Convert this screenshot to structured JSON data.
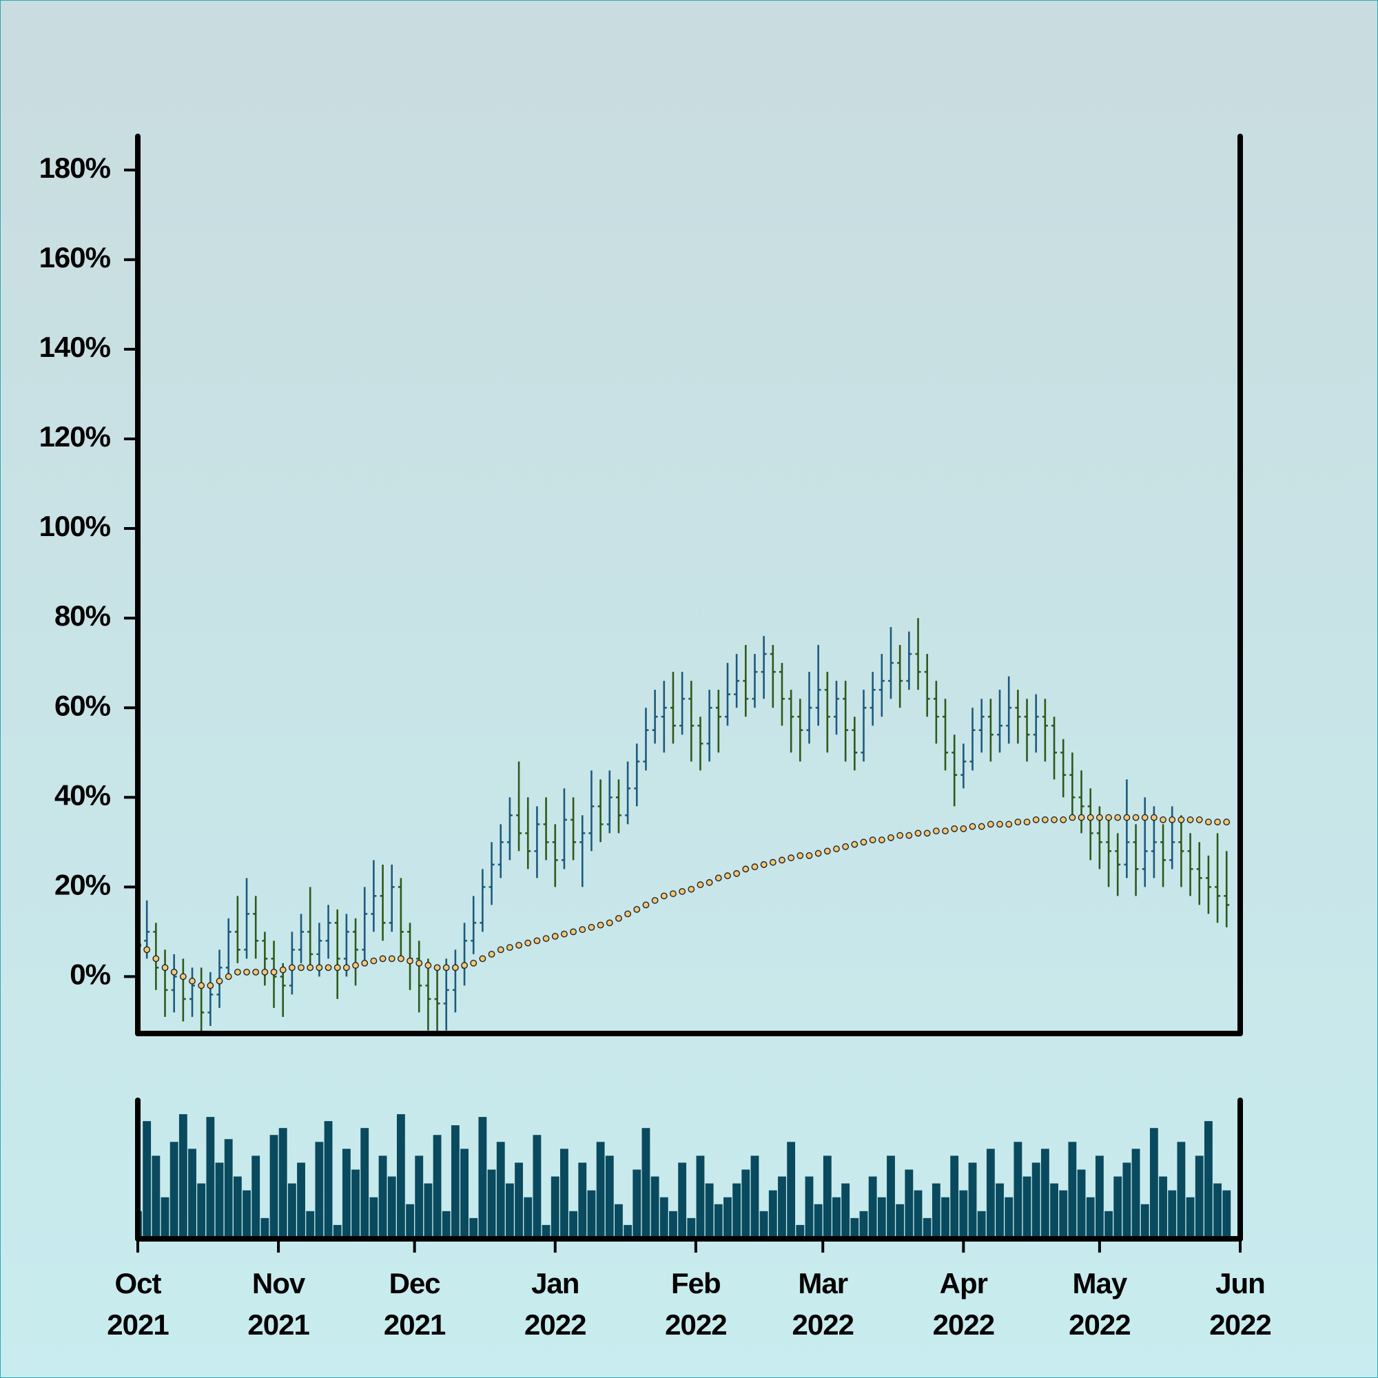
{
  "chart_data": {
    "type": "ohlc",
    "x": [
      0,
      2,
      4,
      6,
      8,
      10,
      12,
      14,
      16,
      18,
      20,
      22,
      24,
      26,
      28,
      30,
      32,
      34,
      36,
      38,
      40,
      42,
      44,
      46,
      48,
      50,
      52,
      54,
      56,
      58,
      60,
      62,
      64,
      66,
      68,
      70,
      72,
      74,
      76,
      78,
      80,
      82,
      84,
      86,
      88,
      90,
      92,
      94,
      96,
      98,
      100,
      102,
      104,
      106,
      108,
      110,
      112,
      114,
      116,
      118,
      120,
      122,
      124,
      126,
      128,
      130,
      132,
      134,
      136,
      138,
      140,
      142,
      144,
      146,
      148,
      150,
      152,
      154,
      156,
      158,
      160,
      162,
      164,
      166,
      168,
      170,
      172,
      174,
      176,
      178,
      180,
      182,
      184,
      186,
      188,
      190,
      192,
      194,
      196,
      198,
      200,
      202,
      204,
      206,
      208,
      210,
      212,
      214,
      216,
      218,
      220,
      222,
      224,
      226,
      228,
      230,
      232,
      234,
      236,
      238,
      240
    ],
    "ohlc": [
      [
        5,
        16,
        2,
        8
      ],
      [
        8,
        17,
        4,
        10
      ],
      [
        10,
        12,
        -3,
        2
      ],
      [
        2,
        6,
        -9,
        -3
      ],
      [
        -3,
        5,
        -8,
        0
      ],
      [
        0,
        4,
        -10,
        -5
      ],
      [
        -5,
        2,
        -9,
        -2
      ],
      [
        -2,
        2,
        -13,
        -8
      ],
      [
        -8,
        1,
        -11,
        -4
      ],
      [
        -4,
        6,
        -7,
        2
      ],
      [
        2,
        13,
        0,
        10
      ],
      [
        10,
        18,
        3,
        6
      ],
      [
        6,
        22,
        4,
        14
      ],
      [
        14,
        18,
        4,
        8
      ],
      [
        8,
        10,
        -2,
        4
      ],
      [
        4,
        8,
        -7,
        0
      ],
      [
        0,
        3,
        -9,
        -2
      ],
      [
        -2,
        10,
        -4,
        6
      ],
      [
        6,
        14,
        3,
        10
      ],
      [
        10,
        20,
        2,
        5
      ],
      [
        5,
        12,
        0,
        8
      ],
      [
        8,
        16,
        4,
        12
      ],
      [
        12,
        15,
        -5,
        4
      ],
      [
        4,
        14,
        0,
        10
      ],
      [
        10,
        13,
        -2,
        6
      ],
      [
        6,
        20,
        3,
        14
      ],
      [
        14,
        26,
        10,
        18
      ],
      [
        18,
        25,
        8,
        12
      ],
      [
        12,
        25,
        10,
        20
      ],
      [
        20,
        22,
        4,
        10
      ],
      [
        10,
        12,
        -3,
        4
      ],
      [
        4,
        8,
        -8,
        -2
      ],
      [
        -2,
        4,
        -12,
        -5
      ],
      [
        -5,
        2,
        -14,
        -6
      ],
      [
        -6,
        4,
        -12,
        -3
      ],
      [
        -3,
        6,
        -8,
        2
      ],
      [
        2,
        12,
        -2,
        8
      ],
      [
        8,
        18,
        5,
        12
      ],
      [
        12,
        24,
        10,
        20
      ],
      [
        20,
        30,
        16,
        25
      ],
      [
        25,
        34,
        22,
        30
      ],
      [
        30,
        40,
        26,
        36
      ],
      [
        36,
        48,
        28,
        32
      ],
      [
        32,
        40,
        24,
        28
      ],
      [
        28,
        38,
        22,
        34
      ],
      [
        34,
        40,
        26,
        30
      ],
      [
        30,
        34,
        20,
        26
      ],
      [
        26,
        42,
        24,
        35
      ],
      [
        35,
        40,
        26,
        30
      ],
      [
        30,
        36,
        20,
        32
      ],
      [
        32,
        46,
        28,
        38
      ],
      [
        38,
        44,
        30,
        34
      ],
      [
        34,
        46,
        32,
        40
      ],
      [
        40,
        44,
        32,
        36
      ],
      [
        36,
        48,
        34,
        42
      ],
      [
        42,
        52,
        38,
        48
      ],
      [
        48,
        60,
        46,
        55
      ],
      [
        55,
        64,
        52,
        58
      ],
      [
        58,
        66,
        50,
        60
      ],
      [
        60,
        68,
        52,
        56
      ],
      [
        56,
        68,
        54,
        62
      ],
      [
        62,
        66,
        48,
        56
      ],
      [
        56,
        58,
        46,
        52
      ],
      [
        52,
        64,
        48,
        60
      ],
      [
        60,
        64,
        50,
        58
      ],
      [
        58,
        70,
        56,
        63
      ],
      [
        63,
        72,
        60,
        66
      ],
      [
        66,
        74,
        58,
        62
      ],
      [
        62,
        72,
        60,
        68
      ],
      [
        68,
        76,
        62,
        72
      ],
      [
        72,
        74,
        60,
        68
      ],
      [
        68,
        70,
        56,
        62
      ],
      [
        62,
        64,
        50,
        58
      ],
      [
        58,
        62,
        48,
        55
      ],
      [
        55,
        68,
        52,
        60
      ],
      [
        60,
        74,
        56,
        64
      ],
      [
        64,
        68,
        50,
        58
      ],
      [
        58,
        66,
        54,
        62
      ],
      [
        62,
        66,
        48,
        55
      ],
      [
        55,
        58,
        46,
        50
      ],
      [
        50,
        64,
        48,
        60
      ],
      [
        60,
        68,
        56,
        64
      ],
      [
        64,
        72,
        58,
        66
      ],
      [
        66,
        78,
        62,
        70
      ],
      [
        70,
        74,
        60,
        66
      ],
      [
        66,
        77,
        64,
        72
      ],
      [
        72,
        80,
        64,
        68
      ],
      [
        68,
        72,
        58,
        62
      ],
      [
        62,
        66,
        52,
        58
      ],
      [
        58,
        62,
        46,
        50
      ],
      [
        50,
        54,
        38,
        45
      ],
      [
        45,
        52,
        42,
        48
      ],
      [
        48,
        60,
        46,
        55
      ],
      [
        55,
        62,
        50,
        58
      ],
      [
        58,
        62,
        48,
        54
      ],
      [
        54,
        64,
        50,
        56
      ],
      [
        56,
        67,
        52,
        60
      ],
      [
        60,
        64,
        52,
        58
      ],
      [
        58,
        62,
        48,
        54
      ],
      [
        54,
        63,
        50,
        58
      ],
      [
        58,
        62,
        48,
        56
      ],
      [
        56,
        58,
        44,
        50
      ],
      [
        50,
        53,
        40,
        45
      ],
      [
        45,
        50,
        36,
        40
      ],
      [
        40,
        46,
        32,
        38
      ],
      [
        38,
        42,
        26,
        32
      ],
      [
        32,
        38,
        24,
        30
      ],
      [
        30,
        36,
        20,
        28
      ],
      [
        28,
        32,
        18,
        25
      ],
      [
        25,
        44,
        22,
        30
      ],
      [
        30,
        34,
        18,
        24
      ],
      [
        24,
        40,
        20,
        28
      ],
      [
        28,
        38,
        22,
        30
      ],
      [
        30,
        34,
        20,
        26
      ],
      [
        26,
        38,
        24,
        30
      ],
      [
        30,
        36,
        20,
        28
      ],
      [
        28,
        32,
        18,
        24
      ],
      [
        24,
        30,
        16,
        22
      ],
      [
        22,
        27,
        14,
        20
      ],
      [
        20,
        32,
        12,
        18
      ],
      [
        18,
        28,
        11,
        16
      ]
    ],
    "moving_average": [
      7,
      6,
      4,
      2,
      1,
      0,
      -1,
      -2,
      -2,
      -1,
      0,
      1,
      1,
      1,
      1,
      1,
      1.5,
      2,
      2,
      2,
      2,
      2,
      2,
      2,
      2.5,
      3,
      3.5,
      4,
      4,
      4,
      3.5,
      3,
      2.5,
      2,
      2,
      2,
      2.5,
      3,
      4,
      5,
      6,
      6.5,
      7,
      7.5,
      8,
      8.5,
      9,
      9.5,
      10,
      10.5,
      11,
      11.5,
      12,
      13,
      14,
      15,
      16,
      17,
      18,
      18.5,
      19,
      19.5,
      20.5,
      21,
      22,
      22.5,
      23,
      24,
      24.5,
      25,
      25.5,
      26,
      26.5,
      27,
      27,
      27.5,
      28,
      28.5,
      29,
      29.5,
      30,
      30.5,
      30.5,
      31,
      31.5,
      31.5,
      32,
      32,
      32.5,
      32.5,
      33,
      33,
      33.5,
      33.5,
      34,
      34,
      34,
      34.5,
      34.5,
      35,
      35,
      35,
      35,
      35.5,
      35.5,
      35.5,
      35.5,
      35.5,
      35.5,
      35.5,
      35.5,
      35.5,
      35.5,
      35,
      35,
      35,
      35,
      35,
      34.5,
      34.5,
      34.5
    ],
    "volume": [
      20,
      85,
      60,
      30,
      70,
      90,
      65,
      40,
      88,
      55,
      72,
      45,
      35,
      60,
      15,
      75,
      80,
      40,
      55,
      20,
      70,
      85,
      10,
      65,
      50,
      80,
      30,
      60,
      45,
      90,
      25,
      60,
      40,
      75,
      20,
      82,
      65,
      15,
      88,
      50,
      70,
      40,
      55,
      30,
      75,
      10,
      45,
      65,
      20,
      55,
      35,
      70,
      60,
      25,
      10,
      50,
      80,
      45,
      30,
      20,
      55,
      15,
      60,
      40,
      25,
      30,
      40,
      50,
      60,
      20,
      35,
      45,
      70,
      10,
      45,
      25,
      60,
      30,
      40,
      15,
      20,
      45,
      30,
      60,
      25,
      50,
      35,
      15,
      40,
      30,
      60,
      35,
      55,
      20,
      65,
      40,
      30,
      70,
      45,
      55,
      65,
      40,
      35,
      70,
      50,
      30,
      60,
      20,
      45,
      55,
      65,
      25,
      80,
      45,
      35,
      70,
      30,
      60,
      85,
      40,
      35
    ],
    "up_color": "#1c5a7e",
    "down_color": "#2b5a1c",
    "volume_color": "#0a4a5e",
    "ma_color": "#f2c879",
    "xlim": [
      0,
      243
    ],
    "xticks": [
      {
        "value": 0,
        "label": [
          "Oct",
          "2021"
        ]
      },
      {
        "value": 31,
        "label": [
          "Nov",
          "2021"
        ]
      },
      {
        "value": 61,
        "label": [
          "Dec",
          "2021"
        ]
      },
      {
        "value": 92,
        "label": [
          "Jan",
          "2022"
        ]
      },
      {
        "value": 123,
        "label": [
          "Feb",
          "2022"
        ]
      },
      {
        "value": 151,
        "label": [
          "Mar",
          "2022"
        ]
      },
      {
        "value": 182,
        "label": [
          "Apr",
          "2022"
        ]
      },
      {
        "value": 212,
        "label": [
          "May",
          "2022"
        ]
      },
      {
        "value": 243,
        "label": [
          "Jun",
          "2022"
        ]
      }
    ],
    "ylim": [
      -12.7,
      187.5
    ],
    "yticks": [
      {
        "value": 0,
        "label": "0%"
      },
      {
        "value": 20,
        "label": "20%"
      },
      {
        "value": 40,
        "label": "40%"
      },
      {
        "value": 60,
        "label": "60%"
      },
      {
        "value": 80,
        "label": "80%"
      },
      {
        "value": 100,
        "label": "100%"
      },
      {
        "value": 120,
        "label": "120%"
      },
      {
        "value": 140,
        "label": "140%"
      },
      {
        "value": 160,
        "label": "160%"
      },
      {
        "value": 180,
        "label": "180%"
      }
    ],
    "volume_ylim": [
      0,
      100
    ]
  }
}
